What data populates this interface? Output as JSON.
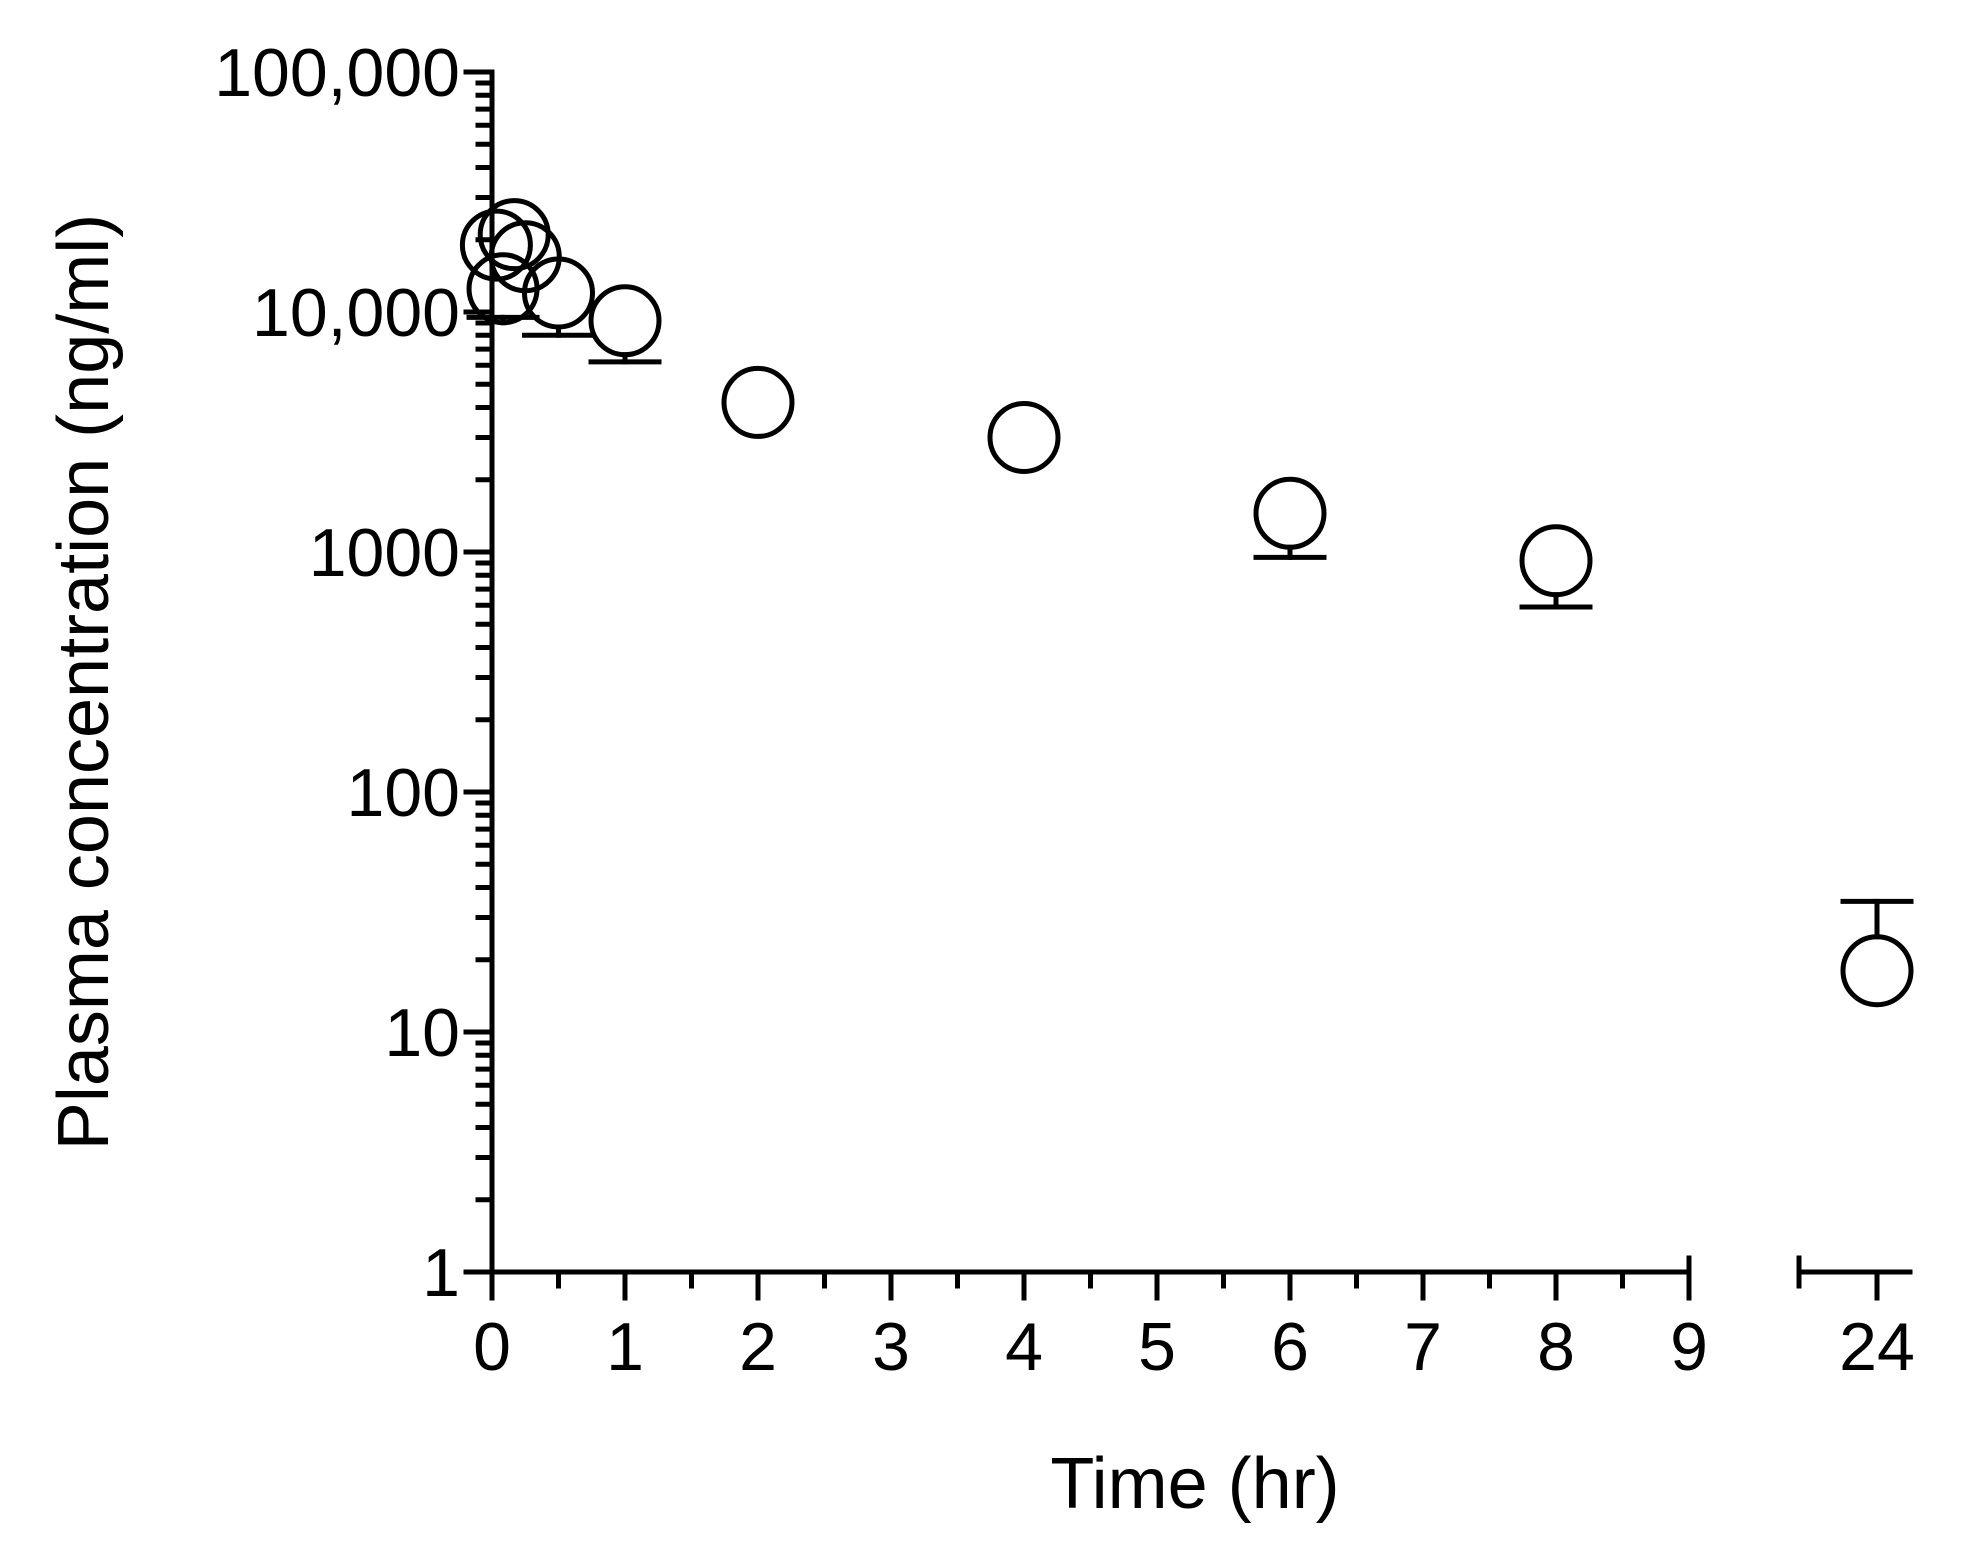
{
  "chart_data": {
    "type": "scatter",
    "title": "",
    "xlabel": "Time (hr)",
    "ylabel": "Plasma concentration (ng/ml)",
    "x_scale": "linear-broken",
    "x_segments": [
      {
        "range": [
          0,
          9
        ],
        "ticks": [
          0,
          1,
          2,
          3,
          4,
          5,
          6,
          7,
          8,
          9
        ],
        "minor_tick_step": 0.5
      },
      {
        "range": [
          24,
          24
        ],
        "ticks": [
          24
        ]
      }
    ],
    "y_scale": "log",
    "ylim": [
      1,
      100000
    ],
    "y_ticks": [
      1,
      10,
      100,
      1000,
      10000,
      100000
    ],
    "y_tick_labels": [
      "1",
      "10",
      "100",
      "1000",
      "10,000",
      "100,000"
    ],
    "x_tick_labels": [
      "0",
      "1",
      "2",
      "3",
      "4",
      "5",
      "6",
      "7",
      "8",
      "9",
      "24"
    ],
    "grid": false,
    "legend": "none",
    "marker": "open-circle",
    "error_bars": "one-sided",
    "series": [
      {
        "points": [
          {
            "x": 0.033,
            "y": 19000
          },
          {
            "x": 0.083,
            "y": 12500,
            "err_low": 9500
          },
          {
            "x": 0.167,
            "y": 21000
          },
          {
            "x": 0.25,
            "y": 17000
          },
          {
            "x": 0.5,
            "y": 12000,
            "err_low": 8000
          },
          {
            "x": 1,
            "y": 9200,
            "err_low": 6200
          },
          {
            "x": 2,
            "y": 4200
          },
          {
            "x": 4,
            "y": 3000
          },
          {
            "x": 6,
            "y": 1450,
            "err_low": 950
          },
          {
            "x": 8,
            "y": 920,
            "err_low": 590
          },
          {
            "x": 24,
            "y": 18,
            "err_high": 35
          }
        ]
      }
    ],
    "colors": {
      "ink": "#000000",
      "background": "#ffffff"
    }
  }
}
